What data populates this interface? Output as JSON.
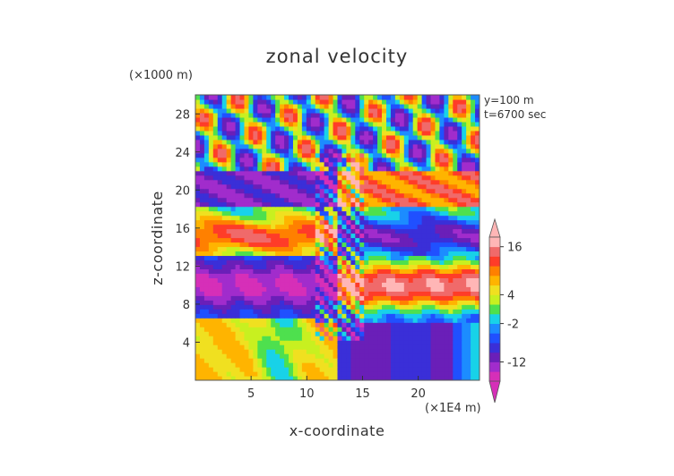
{
  "chart_data": {
    "type": "heatmap",
    "title": "zonal velocity",
    "xlabel": "x-coordinate",
    "ylabel": "z-coordinate",
    "x_unit": "(×1E4 m)",
    "y_unit": "(×1000 m)",
    "annotations": [
      "y=100 m",
      "t=6700 sec"
    ],
    "xlim": [
      0,
      25.5
    ],
    "ylim": [
      0,
      30
    ],
    "x_ticks": [
      5,
      10,
      15,
      20
    ],
    "y_ticks": [
      4,
      8,
      12,
      16,
      20,
      24,
      28
    ],
    "colorbar": {
      "labels": [
        16,
        4,
        -2,
        -12
      ],
      "levels": [
        -18,
        -15,
        -12,
        -9,
        -6,
        -4,
        -2,
        0,
        2,
        4,
        6,
        8,
        10,
        13,
        16,
        20
      ],
      "colors": [
        "#d62fb8",
        "#a12ccc",
        "#6a1fb8",
        "#3a2fd8",
        "#2050ff",
        "#1c8cff",
        "#18d2e8",
        "#4ee04e",
        "#c8f020",
        "#f0e020",
        "#ffb400",
        "#ff8000",
        "#ff3c28",
        "#f06a6a",
        "#ffb6b6"
      ]
    }
  }
}
